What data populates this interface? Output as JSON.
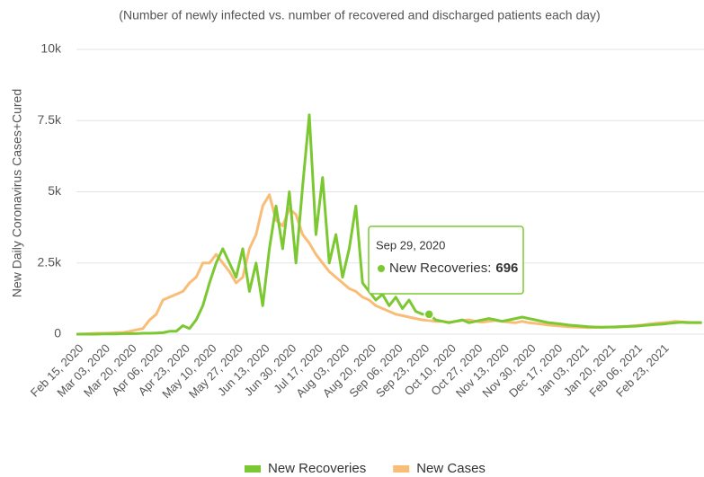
{
  "chart_data": {
    "type": "line",
    "subtitle": "(Number of newly infected vs. number of recovered and discharged patients each day)",
    "ylabel": "New Daily Coronavirus Cases+Cured",
    "categories": [
      "Feb 15, 2020",
      null,
      null,
      null,
      "Mar 03, 2020",
      null,
      null,
      null,
      "Mar 20, 2020",
      null,
      null,
      null,
      "Apr 06, 2020",
      null,
      null,
      null,
      "Apr 23, 2020",
      null,
      null,
      null,
      "May 10, 2020",
      null,
      null,
      null,
      "May 27, 2020",
      null,
      null,
      null,
      "Jun 13, 2020",
      null,
      null,
      null,
      "Jun 30, 2020",
      null,
      null,
      null,
      "Jul 17, 2020",
      null,
      null,
      null,
      "Aug 03, 2020",
      null,
      null,
      null,
      "Aug 20, 2020",
      null,
      null,
      null,
      "Sep 06, 2020",
      null,
      null,
      null,
      "Sep 23, 2020",
      null,
      null,
      null,
      "Oct 10, 2020",
      null,
      null,
      null,
      "Oct 27, 2020",
      null,
      null,
      null,
      "Nov 13, 2020",
      null,
      null,
      null,
      "Nov 30, 2020",
      null,
      null,
      null,
      "Dec 17, 2020",
      null,
      null,
      null,
      "Jan 03, 2021",
      null,
      null,
      null,
      "Jan 20, 2021",
      null,
      null,
      null,
      "Feb 06, 2021",
      null,
      null,
      null,
      "Feb 23, 2021",
      null,
      null,
      null,
      null,
      null,
      null
    ],
    "series": [
      {
        "name": "New Recoveries",
        "color": "#7cc833",
        "values": [
          0,
          0,
          0,
          0,
          10,
          10,
          10,
          20,
          20,
          20,
          30,
          30,
          40,
          50,
          100,
          100,
          300,
          200,
          500,
          1000,
          1800,
          2500,
          3000,
          2500,
          2000,
          3000,
          1500,
          2500,
          1000,
          3000,
          4500,
          3000,
          5000,
          2500,
          5200,
          7700,
          3500,
          5500,
          2500,
          3500,
          2000,
          3000,
          4500,
          1800,
          1500,
          1200,
          1400,
          1000,
          1300,
          900,
          1200,
          800,
          700,
          696,
          500,
          450,
          400,
          450,
          500,
          400,
          450,
          500,
          550,
          500,
          450,
          500,
          550,
          600,
          550,
          500,
          450,
          400,
          380,
          350,
          320,
          300,
          280,
          260,
          250,
          240,
          250,
          250,
          260,
          270,
          280,
          300,
          320,
          340,
          350,
          380,
          400,
          420,
          400,
          410,
          400
        ]
      },
      {
        "name": "New Cases",
        "color": "#f8bd76",
        "values": [
          0,
          10,
          20,
          30,
          30,
          40,
          50,
          60,
          100,
          150,
          200,
          500,
          700,
          1200,
          1300,
          1400,
          1500,
          1800,
          2000,
          2500,
          2500,
          2800,
          2500,
          2200,
          1800,
          2000,
          3000,
          3500,
          4500,
          4900,
          4000,
          3800,
          4400,
          4200,
          3500,
          3200,
          2800,
          2500,
          2200,
          2000,
          1800,
          1600,
          1500,
          1300,
          1200,
          1000,
          900,
          800,
          700,
          650,
          600,
          550,
          500,
          480,
          450,
          450,
          420,
          450,
          480,
          500,
          450,
          420,
          450,
          480,
          450,
          420,
          400,
          450,
          400,
          380,
          350,
          320,
          300,
          280,
          260,
          250,
          240,
          230,
          240,
          250,
          250,
          260,
          270,
          280,
          300,
          320,
          350,
          380,
          400,
          420,
          450,
          430,
          420,
          400,
          410
        ]
      }
    ],
    "ylim": [
      0,
      10000
    ],
    "yticks": [
      0,
      {
        "value": 2500,
        "label": "2.5k"
      },
      {
        "value": 5000,
        "label": "5k"
      },
      {
        "value": 7500,
        "label": "7.5k"
      },
      {
        "value": 10000,
        "label": "10k"
      }
    ],
    "grid": true,
    "legend": "bottom",
    "tooltip": {
      "date": "Sep 29, 2020",
      "series": "New Recoveries:",
      "value": 696,
      "index": 53
    }
  }
}
